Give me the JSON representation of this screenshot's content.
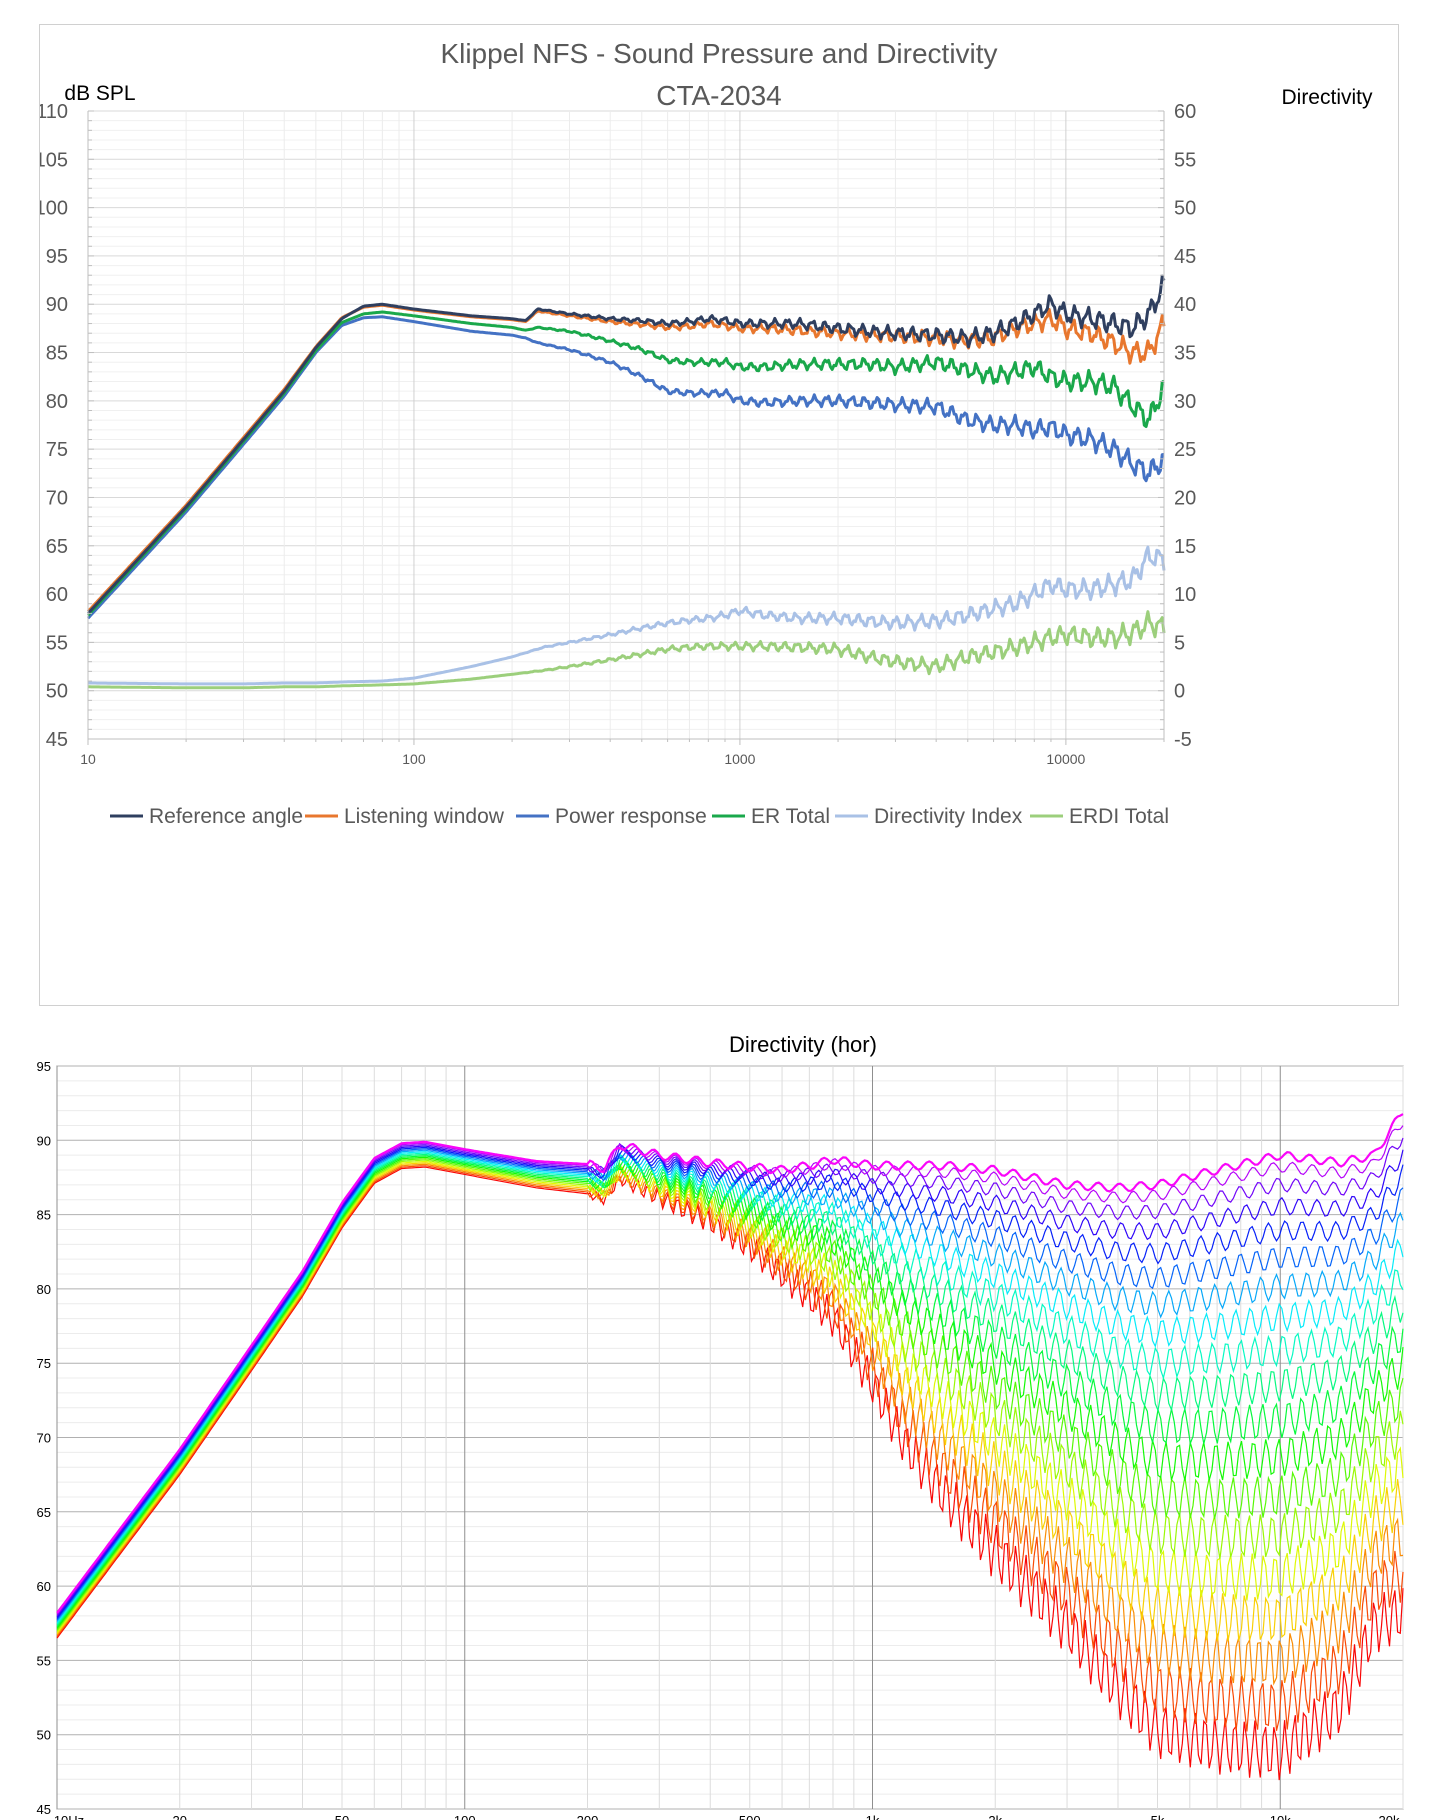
{
  "chart_data": [
    {
      "type": "line",
      "title": "Klippel NFS - Sound Pressure and Directivity",
      "subtitle": "CTA-2034",
      "ylabel": "dB SPL",
      "y2label": "Directivity",
      "xscale": "log",
      "xlim": [
        10,
        20000
      ],
      "ylim": [
        45,
        110
      ],
      "y2lim": [
        -5,
        60
      ],
      "yticks": [
        "110",
        "105",
        "100",
        "95",
        "90",
        "85",
        "80",
        "75",
        "70",
        "65",
        "60",
        "55",
        "50",
        "45"
      ],
      "y2ticks": [
        "60",
        "55",
        "50",
        "45",
        "40",
        "35",
        "30",
        "25",
        "20",
        "15",
        "10",
        "5",
        "0",
        "-5"
      ],
      "xticks": [
        "10",
        "100",
        "1000",
        "10000"
      ],
      "legend_position": "bottom",
      "grid": true,
      "series": [
        {
          "name": "Reference angle",
          "color": "#2f3f5f",
          "axis": "left",
          "x": [
            10,
            20,
            30,
            40,
            50,
            60,
            70,
            80,
            100,
            150,
            200,
            220,
            240,
            300,
            400,
            500,
            600,
            700,
            800,
            900,
            1000,
            1200,
            1500,
            2000,
            2500,
            3000,
            4000,
            5000,
            6000,
            7000,
            8000,
            9000,
            10000,
            12000,
            14000,
            16000,
            18000,
            20000
          ],
          "y": [
            58,
            69,
            76,
            81,
            85.5,
            88.5,
            89.8,
            90,
            89.5,
            88.8,
            88.5,
            88.3,
            89.5,
            89,
            88.5,
            88.3,
            88,
            88.2,
            88.5,
            88.3,
            88,
            88,
            88,
            87.5,
            87.2,
            87,
            86.8,
            86.5,
            87,
            88,
            89,
            90,
            89,
            88.5,
            88,
            87.5,
            89,
            92
          ]
        },
        {
          "name": "Listening window",
          "color": "#e8772e",
          "axis": "left",
          "x": [
            10,
            20,
            30,
            40,
            50,
            60,
            70,
            80,
            100,
            150,
            200,
            220,
            240,
            300,
            400,
            500,
            600,
            700,
            800,
            900,
            1000,
            1200,
            1500,
            2000,
            2500,
            3000,
            4000,
            5000,
            6000,
            7000,
            8000,
            9000,
            10000,
            12000,
            14000,
            16000,
            18000,
            20000
          ],
          "y": [
            58.2,
            69.2,
            76.2,
            81.2,
            85.6,
            88.6,
            89.7,
            89.9,
            89.4,
            88.7,
            88.4,
            88.2,
            89.3,
            88.8,
            88.2,
            87.9,
            87.6,
            87.7,
            88,
            87.8,
            87.5,
            87.5,
            87.3,
            87,
            86.8,
            86.7,
            86.5,
            86.2,
            86.5,
            87.5,
            88,
            88.5,
            87.5,
            87,
            86,
            85,
            85,
            88
          ]
        },
        {
          "name": "Power response",
          "color": "#4472c4",
          "axis": "left",
          "x": [
            10,
            20,
            30,
            40,
            50,
            60,
            70,
            80,
            100,
            150,
            200,
            220,
            240,
            300,
            400,
            500,
            600,
            700,
            800,
            900,
            1000,
            1200,
            1500,
            2000,
            2500,
            3000,
            4000,
            5000,
            6000,
            7000,
            8000,
            9000,
            10000,
            12000,
            14000,
            16000,
            18000,
            20000
          ],
          "y": [
            57.5,
            68.5,
            75.5,
            80.5,
            85,
            87.8,
            88.6,
            88.7,
            88.2,
            87.2,
            86.8,
            86.5,
            86,
            85.3,
            84,
            82.5,
            81,
            80.8,
            80.8,
            80.8,
            80,
            79.8,
            80,
            80,
            79.8,
            79.6,
            79.4,
            78,
            77.5,
            77.5,
            77,
            77.3,
            76.5,
            76,
            75,
            73.5,
            72.5,
            74
          ]
        },
        {
          "name": "ER Total",
          "color": "#1aa84b",
          "axis": "left",
          "x": [
            10,
            20,
            30,
            40,
            50,
            60,
            70,
            80,
            100,
            150,
            200,
            220,
            240,
            300,
            400,
            500,
            600,
            700,
            800,
            900,
            1000,
            1200,
            1500,
            2000,
            2500,
            3000,
            4000,
            5000,
            6000,
            7000,
            8000,
            9000,
            10000,
            12000,
            14000,
            16000,
            18000,
            20000
          ],
          "y": [
            57.8,
            68.8,
            75.8,
            80.8,
            85.2,
            88.1,
            89,
            89.2,
            88.8,
            88,
            87.6,
            87.3,
            87.6,
            87.2,
            86.2,
            85.3,
            84.2,
            84,
            84,
            84,
            83.5,
            83.5,
            83.8,
            83.8,
            83.8,
            83.5,
            84,
            83.2,
            82.5,
            83,
            83.5,
            82.5,
            82,
            82,
            81.5,
            79.5,
            78,
            81.5
          ]
        },
        {
          "name": "Directivity Index",
          "color": "#a9c1e6",
          "axis": "right",
          "x": [
            10,
            20,
            30,
            40,
            50,
            60,
            80,
            100,
            150,
            200,
            250,
            300,
            400,
            500,
            600,
            700,
            800,
            900,
            1000,
            1200,
            1500,
            2000,
            2500,
            3000,
            4000,
            5000,
            6000,
            7000,
            8000,
            9000,
            10000,
            12000,
            14000,
            16000,
            18000,
            20000
          ],
          "y": [
            0.8,
            0.7,
            0.7,
            0.8,
            0.8,
            0.9,
            1,
            1.3,
            2.5,
            3.5,
            4.5,
            5,
            5.8,
            6.5,
            7,
            7.3,
            7.5,
            7.8,
            8.3,
            7.8,
            7.5,
            7.5,
            7.2,
            7,
            7.2,
            7.8,
            8.5,
            9,
            10,
            11,
            10.5,
            10.5,
            11,
            11.5,
            14,
            13.5
          ]
        },
        {
          "name": "ERDI Total",
          "color": "#9ccf7c",
          "axis": "right",
          "x": [
            10,
            20,
            30,
            40,
            50,
            60,
            80,
            100,
            150,
            200,
            250,
            300,
            400,
            500,
            600,
            700,
            800,
            900,
            1000,
            1200,
            1500,
            2000,
            2500,
            3000,
            4000,
            5000,
            6000,
            7000,
            8000,
            9000,
            10000,
            12000,
            14000,
            16000,
            18000,
            20000
          ],
          "y": [
            0.4,
            0.3,
            0.3,
            0.4,
            0.4,
            0.5,
            0.6,
            0.7,
            1.2,
            1.7,
            2.1,
            2.5,
            3.2,
            3.8,
            4.3,
            4.5,
            4.6,
            4.6,
            4.6,
            4.6,
            4.5,
            4.3,
            3.5,
            3,
            2.5,
            3.5,
            4,
            4.5,
            5,
            5.5,
            5.8,
            5.5,
            5.5,
            6,
            7,
            6.5
          ]
        }
      ]
    },
    {
      "type": "line",
      "title": "Directivity (hor)",
      "xscale": "log",
      "xlim": [
        10,
        20000
      ],
      "ylim": [
        45,
        95
      ],
      "yticks": [
        "95",
        "90",
        "85",
        "80",
        "75",
        "70",
        "65",
        "60",
        "55",
        "50",
        "45"
      ],
      "xticks": [
        "10Hz",
        "20",
        "50",
        "100",
        "200",
        "500",
        "1k",
        "2k",
        "5k",
        "10k",
        "20k"
      ],
      "grid": true,
      "series_description": "horizontal off-axis family 0°–180°, rainbow coloured",
      "base_x": [
        10,
        20,
        30,
        40,
        50,
        60,
        70,
        80,
        100,
        150,
        200,
        220,
        240,
        300,
        400,
        500,
        600,
        700,
        800,
        1000,
        1200,
        1500,
        2000,
        3000,
        4000,
        5000,
        7000,
        10000,
        14000,
        17000,
        20000
      ],
      "on_axis_y": [
        58.2,
        69.2,
        76.2,
        81.2,
        85.8,
        88.8,
        89.8,
        89.9,
        89.4,
        88.6,
        88.4,
        88.1,
        89.7,
        89,
        88.5,
        88.2,
        88,
        88.3,
        88.7,
        88.3,
        88.3,
        88.3,
        88,
        87,
        86.8,
        87,
        88,
        89,
        88.5,
        89,
        92
      ],
      "offaxis_drop_db": [
        0,
        0,
        0,
        0,
        0,
        0,
        0,
        0,
        0,
        0.1,
        0.3,
        0.4,
        0.6,
        1.2,
        2.3,
        3.7,
        5.3,
        7.1,
        9,
        13,
        17,
        20.5,
        24,
        28,
        32,
        35,
        37,
        38.5,
        35,
        30,
        32
      ],
      "off_axis_angles": [
        10,
        20,
        30,
        40,
        50,
        60,
        70,
        80,
        90,
        100,
        110,
        120,
        130,
        140,
        150,
        160,
        170,
        180
      ]
    }
  ]
}
